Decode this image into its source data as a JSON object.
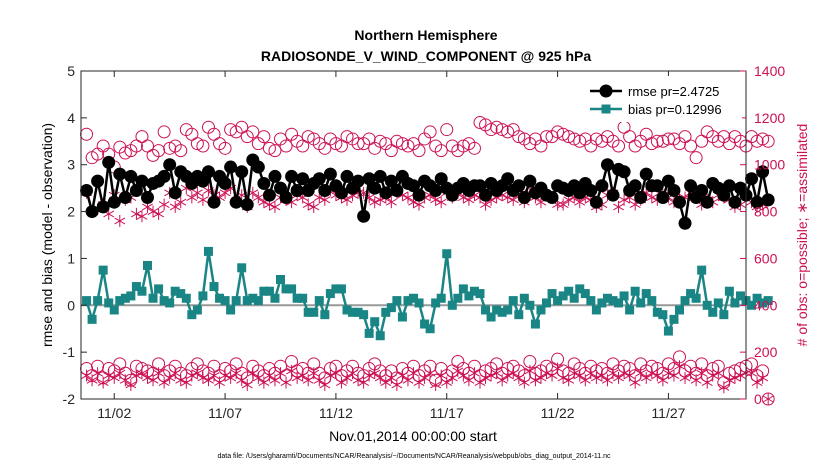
{
  "chart_data": {
    "type": "line",
    "title": "Northern Hemisphere",
    "subtitle": "RADIOSONDE_V_WIND_COMPONENT @ 925 hPa",
    "xlabel": "Nov.01,2014 00:00:00 start",
    "ylabel_left": "rmse and bias (model - observation)",
    "ylabel_right": "# of obs: o=possible; ∗=assimilated",
    "footnote": "data file: /Users/gharamti/Documents/NCAR/Reanalysis/~/Documents/NCAR/Reanalysis/webpub/obs_diag_output_2014-11.nc",
    "xlim": [
      0.5,
      30.5
    ],
    "ylim_left": [
      -2,
      5
    ],
    "ylim_right": [
      0,
      1400
    ],
    "x_ticks": [
      2,
      7,
      12,
      17,
      22,
      27
    ],
    "x_tick_labels": [
      "11/02",
      "11/07",
      "11/12",
      "11/17",
      "11/22",
      "11/27"
    ],
    "y_ticks_left": [
      -2,
      -1,
      0,
      1,
      2,
      3,
      4,
      5
    ],
    "y_ticks_right": [
      0,
      200,
      400,
      600,
      800,
      1000,
      1200,
      1400
    ],
    "x_start": 0.75,
    "x_step": 0.25,
    "legend_position": "top-right",
    "colors": {
      "rmse": "#000000",
      "bias": "#1a8585",
      "obs": "#cc1155",
      "zero_line": "#999999",
      "axis": "#262626"
    },
    "series": [
      {
        "name": "rmse pr=2.4725",
        "axis": "left",
        "values": [
          2.45,
          2.0,
          2.65,
          2.1,
          3.05,
          2.2,
          2.8,
          2.3,
          2.75,
          2.45,
          2.65,
          2.3,
          2.6,
          2.65,
          2.75,
          3.0,
          2.4,
          2.85,
          2.75,
          2.6,
          2.75,
          2.65,
          2.85,
          2.2,
          2.75,
          2.6,
          2.95,
          2.2,
          2.85,
          2.15,
          3.1,
          2.95,
          2.6,
          2.35,
          2.75,
          2.5,
          2.3,
          2.75,
          2.45,
          2.7,
          2.45,
          2.6,
          2.7,
          2.45,
          2.8,
          2.55,
          2.4,
          2.75,
          2.5,
          2.65,
          1.9,
          2.7,
          2.5,
          2.75,
          2.4,
          2.65,
          2.45,
          2.75,
          2.6,
          2.55,
          2.35,
          2.65,
          2.55,
          2.45,
          2.7,
          2.5,
          2.35,
          2.5,
          2.6,
          2.45,
          2.55,
          2.55,
          2.35,
          2.6,
          2.45,
          2.55,
          2.7,
          2.45,
          2.55,
          2.3,
          2.65,
          2.4,
          2.5,
          2.35,
          2.3,
          2.55,
          2.5,
          2.45,
          2.55,
          2.4,
          2.6,
          2.45,
          2.2,
          2.55,
          3.0,
          2.35,
          2.9,
          2.85,
          2.45,
          2.55,
          2.3,
          2.8,
          2.55,
          2.55,
          2.3,
          2.65,
          2.45,
          2.2,
          1.75,
          2.55,
          2.3,
          2.45,
          2.2,
          2.6,
          2.5,
          2.35,
          2.55,
          2.2,
          2.5,
          2.35,
          2.7,
          2.2,
          2.85,
          2.25
        ]
      },
      {
        "name": "bias pr=0.12996",
        "axis": "left",
        "values": [
          0.1,
          -0.3,
          0.1,
          0.75,
          0.05,
          -0.1,
          0.1,
          0.15,
          0.2,
          0.4,
          0.3,
          0.85,
          0.15,
          0.35,
          0.1,
          0.05,
          0.3,
          0.25,
          0.15,
          -0.2,
          -0.1,
          0.2,
          1.15,
          0.4,
          0.15,
          0.1,
          -0.1,
          0.1,
          0.8,
          0.1,
          0.15,
          0.1,
          0.3,
          0.3,
          0.15,
          0.55,
          0.35,
          0.35,
          0.15,
          0.15,
          -0.15,
          -0.15,
          0.1,
          -0.2,
          0.25,
          0.35,
          0.35,
          -0.1,
          -0.15,
          -0.15,
          -0.2,
          -0.6,
          -0.35,
          -0.65,
          -0.15,
          -0.05,
          0.1,
          -0.25,
          0.1,
          0.15,
          0.05,
          -0.4,
          -0.5,
          0.05,
          0.15,
          1.1,
          0.0,
          0.15,
          0.35,
          0.2,
          0.3,
          0.25,
          -0.1,
          -0.25,
          -0.1,
          -0.15,
          -0.1,
          0.1,
          -0.2,
          0.15,
          0.0,
          -0.4,
          -0.1,
          0.05,
          0.25,
          0.1,
          0.2,
          0.3,
          0.15,
          0.35,
          0.25,
          0.1,
          -0.1,
          0.05,
          0.15,
          0.1,
          0.05,
          0.2,
          -0.1,
          0.3,
          0.05,
          0.25,
          0.1,
          -0.15,
          -0.2,
          -0.55,
          -0.3,
          -0.1,
          0.1,
          0.25,
          0.15,
          0.75,
          0.0,
          -0.15,
          0.05,
          -0.2,
          0.3,
          0.05,
          0.2,
          0.1,
          0.0,
          0.15,
          0.05,
          0.1
        ]
      },
      {
        "name": "# of obs possible (upper)",
        "axis": "right",
        "values": [
          1130,
          1030,
          1045,
          1080,
          1045,
          990,
          1075,
          1050,
          1060,
          1080,
          1120,
          1080,
          1040,
          1060,
          1140,
          1070,
          1080,
          1060,
          1150,
          1130,
          1090,
          1080,
          1160,
          1130,
          1090,
          1070,
          1150,
          1140,
          1160,
          1120,
          1140,
          1090,
          1120,
          1070,
          1060,
          1110,
          1080,
          1130,
          1100,
          1080,
          1120,
          1110,
          1090,
          1070,
          1110,
          1090,
          1080,
          1120,
          1110,
          1090,
          1090,
          1110,
          1070,
          1100,
          1090,
          1060,
          1100,
          1090,
          1080,
          1090,
          1060,
          1110,
          1140,
          1080,
          1060,
          1150,
          1080,
          1060,
          1080,
          1090,
          1070,
          1180,
          1170,
          1150,
          1160,
          1150,
          1140,
          1150,
          1120,
          1110,
          1090,
          1110,
          1080,
          1120,
          1120,
          1140,
          1130,
          1120,
          1110,
          1100,
          1110,
          1080,
          1110,
          1100,
          1120,
          1100,
          1080,
          1160,
          1120,
          1080,
          1100,
          1130,
          1090,
          1100,
          1100,
          1110,
          1110,
          1090,
          1120,
          1080,
          1030,
          1100,
          1140,
          1120,
          1100,
          1120,
          1090,
          1120,
          1100,
          1080,
          1120,
          1100,
          1110,
          1100
        ]
      },
      {
        "name": "# of obs assimilated (upper)",
        "axis": "right",
        "values": [
          880,
          800,
          810,
          830,
          790,
          870,
          760,
          850,
          860,
          790,
          780,
          820,
          800,
          790,
          830,
          880,
          820,
          840,
          900,
          860,
          880,
          850,
          890,
          870,
          860,
          880,
          900,
          840,
          870,
          820,
          880,
          860,
          840,
          830,
          820,
          860,
          850,
          840,
          870,
          860,
          830,
          820,
          860,
          850,
          890,
          870,
          860,
          850,
          870,
          880,
          880,
          860,
          840,
          850,
          860,
          840,
          880,
          870,
          860,
          840,
          830,
          860,
          870,
          850,
          840,
          880,
          860,
          880,
          860,
          850,
          870,
          860,
          830,
          850,
          860,
          870,
          860,
          850,
          870,
          840,
          880,
          860,
          840,
          870,
          860,
          830,
          830,
          850,
          860,
          840,
          860,
          850,
          820,
          830,
          870,
          880,
          820,
          850,
          860,
          830,
          850,
          880,
          860,
          850,
          870,
          860,
          840,
          850,
          860,
          880,
          860,
          830,
          850,
          840,
          870,
          860,
          850,
          820,
          830,
          870,
          840,
          820,
          830,
          850
        ]
      },
      {
        "name": "# of obs possible (lower)",
        "axis": "right",
        "values": [
          130,
          100,
          140,
          90,
          130,
          120,
          150,
          110,
          80,
          140,
          130,
          120,
          110,
          150,
          100,
          120,
          140,
          110,
          100,
          130,
          150,
          120,
          110,
          140,
          100,
          130,
          120,
          150,
          110,
          90,
          140,
          120,
          100,
          130,
          110,
          140,
          100,
          160,
          120,
          130,
          110,
          150,
          110,
          90,
          130,
          140,
          100,
          120,
          140,
          110,
          100,
          130,
          150,
          120,
          100,
          120,
          90,
          130,
          110,
          140,
          100,
          120,
          140,
          80,
          130,
          100,
          120,
          160,
          130,
          110,
          140,
          100,
          120,
          130,
          150,
          110,
          130,
          140,
          120,
          100,
          160,
          110,
          120,
          140,
          130,
          170,
          120,
          110,
          150,
          130,
          110,
          140,
          120,
          130,
          110,
          150,
          120,
          140,
          130,
          100,
          150,
          120,
          140,
          130,
          110,
          150,
          130,
          180,
          120,
          140,
          110,
          150,
          100,
          130,
          140,
          70,
          110,
          120,
          130,
          140,
          150,
          100,
          120,
          0
        ]
      },
      {
        "name": "# of obs assimilated (lower)",
        "axis": "right",
        "values": [
          100,
          80,
          110,
          70,
          100,
          90,
          110,
          80,
          60,
          100,
          110,
          90,
          80,
          110,
          70,
          90,
          110,
          80,
          70,
          100,
          110,
          90,
          80,
          100,
          70,
          100,
          90,
          110,
          80,
          60,
          110,
          90,
          70,
          100,
          80,
          110,
          70,
          120,
          90,
          100,
          80,
          110,
          80,
          60,
          100,
          110,
          70,
          90,
          110,
          80,
          70,
          100,
          110,
          90,
          70,
          90,
          60,
          100,
          80,
          110,
          70,
          90,
          110,
          60,
          100,
          70,
          90,
          120,
          100,
          80,
          110,
          70,
          90,
          100,
          110,
          80,
          100,
          110,
          90,
          70,
          120,
          80,
          90,
          110,
          100,
          130,
          90,
          80,
          110,
          100,
          80,
          110,
          90,
          100,
          80,
          110,
          90,
          110,
          100,
          70,
          110,
          90,
          110,
          100,
          80,
          110,
          100,
          140,
          90,
          110,
          80,
          110,
          70,
          100,
          110,
          50,
          80,
          90,
          100,
          110,
          110,
          70,
          90,
          0
        ]
      }
    ]
  }
}
